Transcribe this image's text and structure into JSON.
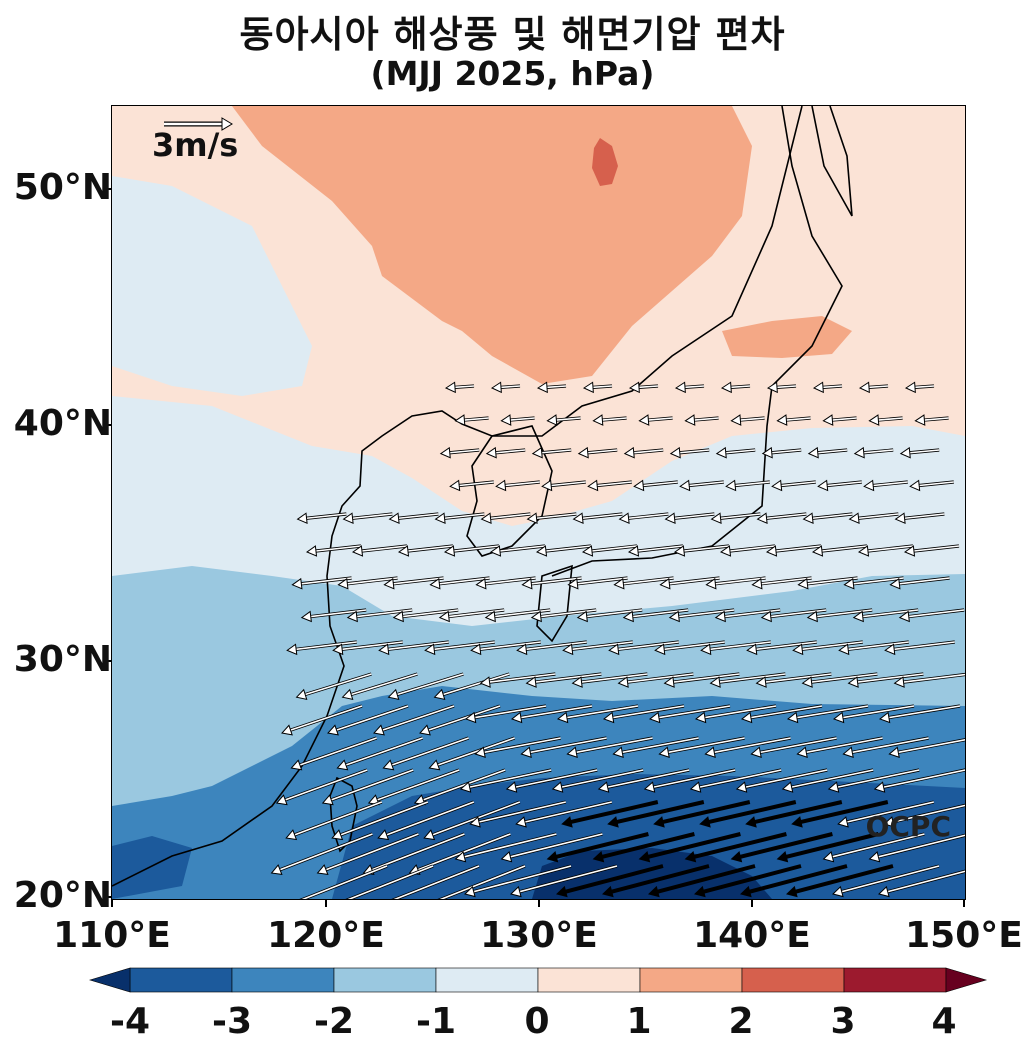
{
  "title": "동아시아 해상풍 및 해면기압 편차",
  "subtitle": "(MJJ 2025, hPa)",
  "reference_vector": {
    "label": "3m/s",
    "speed_ms": 3
  },
  "credit": "OCPC",
  "y_ticks": [
    "50°N",
    "40°N",
    "30°N",
    "20°N"
  ],
  "x_ticks": [
    "110°E",
    "120°E",
    "130°E",
    "140°E",
    "150°E"
  ],
  "extent": {
    "lon": [
      110,
      150
    ],
    "lat": [
      20,
      53.5
    ]
  },
  "colorbar": {
    "labels": [
      "-4",
      "-3",
      "-2",
      "-1",
      "0",
      "1",
      "2",
      "3",
      "4"
    ],
    "levels": [
      -4,
      -3,
      -2,
      -1,
      0,
      1,
      2,
      3,
      4
    ],
    "colors": {
      "lt_-4": "#08306b",
      "-4_-3": "#1c5a9c",
      "-3_-2": "#3d85bd",
      "-2_-1": "#9ac8e0",
      "-1_0": "#deebf3",
      "0_1": "#fbe3d6",
      "1_2": "#f4a886",
      "2_3": "#d6604d",
      "3_4": "#9c1a2e",
      "gt_4": "#67001f"
    }
  },
  "chart_data": {
    "type": "heatmap",
    "variable": "sea level pressure anomaly",
    "units": "hPa",
    "period": "MJJ 2025",
    "anomaly_regions": [
      {
        "region": "Northeast China / Mongolia",
        "range": [
          1,
          2
        ],
        "max_cell": [
          2,
          3
        ]
      },
      {
        "region": "Korea / Japan Sea / northern Japan",
        "range": [
          0,
          1
        ]
      },
      {
        "region": "East China Sea / southern Japan",
        "range": [
          -1,
          0
        ]
      },
      {
        "region": "Subtropical western Pacific 25-30°N",
        "range": [
          -2,
          -1
        ]
      },
      {
        "region": "Philippine Sea / Taiwan 20-25°N",
        "range": [
          -4,
          -2
        ]
      }
    ],
    "wind_anomaly": "easterly to northeasterly anomalies south of 35°N, strongest (black arrows) over 22-25°N near 132-145°E"
  }
}
